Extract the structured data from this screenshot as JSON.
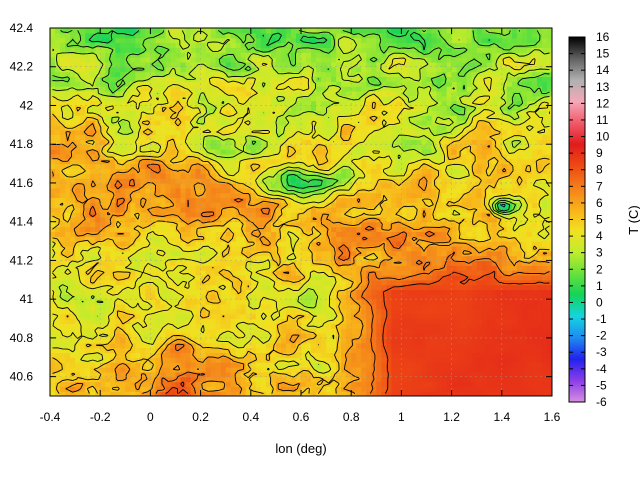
{
  "chart_data": {
    "type": "heatmap",
    "title": "",
    "xlabel": "lon (deg)",
    "ylabel": "",
    "colorbar_label": "T (C)",
    "xlim": [
      -0.4,
      1.6
    ],
    "ylim": [
      40.5,
      42.4
    ],
    "x_ticks": [
      -0.4,
      -0.2,
      0,
      0.2,
      0.4,
      0.6,
      0.8,
      1,
      1.2,
      1.4,
      1.6
    ],
    "x_tick_labels": [
      "-0.4",
      "-0.2",
      "0",
      "0.2",
      "0.4",
      "0.6",
      "0.8",
      "1",
      "1.2",
      "1.4",
      "1.6"
    ],
    "y_ticks": [
      40.6,
      40.8,
      41,
      41.2,
      41.4,
      41.6,
      41.8,
      42,
      42.2,
      42.4
    ],
    "y_tick_labels": [
      "40.6",
      "40.8",
      "41",
      "41.2",
      "41.4",
      "41.6",
      "41.8",
      "42",
      "42.2",
      "42.4"
    ],
    "color_range": [
      -6,
      16
    ],
    "colorbar_ticks": [
      -6,
      -5,
      -4,
      -3,
      -2,
      -1,
      0,
      1,
      2,
      3,
      4,
      5,
      6,
      7,
      8,
      9,
      10,
      11,
      12,
      13,
      14,
      15,
      16
    ],
    "colorbar_tick_labels": [
      "-6",
      "-5",
      "-4",
      "-3",
      "-2",
      "-1",
      "0",
      "1",
      "2",
      "3",
      "4",
      "5",
      "6",
      "7",
      "8",
      "9",
      "10",
      "11",
      "12",
      "13",
      "14",
      "15",
      "16"
    ],
    "palette": [
      "#d88ee0",
      "#8a3ee8",
      "#2222ee",
      "#1e8cf0",
      "#14d4e0",
      "#14d458",
      "#6ae23a",
      "#c2ec2c",
      "#f2e020",
      "#f8b01a",
      "#f47e1a",
      "#ee4a14",
      "#e01c1c",
      "#f05a6a",
      "#f4a8b8",
      "#b0b0b0",
      "#606060",
      "#000000"
    ],
    "grid": true,
    "contours": true,
    "contour_color": "#000000",
    "field_summary": {
      "sea_region": "lower-right, lon > 0.8, lat < 41.2, temperature ~8.5-9 C",
      "valley_region": "center, around lon 0.5-0.8, lat 41.5-41.7, temperature ~0-2 C",
      "mountain_band": "upper portion lat > 41.8, temperature ~1-5 C",
      "coastal_range": "lon 0.2-1.4, lat 40.8-41.4, temperature ~5-9 C"
    }
  }
}
